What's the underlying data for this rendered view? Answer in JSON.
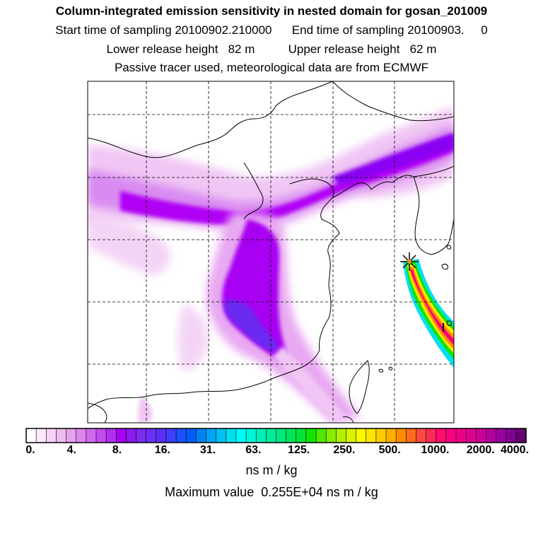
{
  "titles": {
    "main": "Column-integrated emission sensitivity in nested domain for gosan_201009",
    "sampling": "Start time of sampling 20100902.210000      End time of sampling 20100903.     0",
    "release": "Lower release height   82 m          Upper release height   62 m",
    "tracer": "Passive tracer used, meteorological data are from ECMWF"
  },
  "colorbar": {
    "tick_labels": [
      "0.",
      "4.",
      "8.",
      "16.",
      "31.",
      "63.",
      "125.",
      "250.",
      "500.",
      "1000.",
      "2000.",
      "4000."
    ],
    "colors": [
      "#ffffff",
      "#fbe8fb",
      "#f6d2f6",
      "#efbcf2",
      "#e6a2ef",
      "#dc86ee",
      "#d06aee",
      "#c24cee",
      "#b52df0",
      "#a800f2",
      "#8c1af0",
      "#7a2cf0",
      "#6a30f6",
      "#5a30f8",
      "#3c40fa",
      "#1c50fc",
      "#005ef8",
      "#0084f4",
      "#00a4f4",
      "#00c2f4",
      "#00e0f0",
      "#00fcf8",
      "#00f6da",
      "#00f0b8",
      "#00ec9c",
      "#00e880",
      "#00e45c",
      "#00e43c",
      "#14e400",
      "#4ee800",
      "#86ec00",
      "#b4f000",
      "#daf400",
      "#fafa00",
      "#ffe600",
      "#ffcc00",
      "#ffb000",
      "#ff8c00",
      "#ff6c1c",
      "#ff4a40",
      "#ff2a56",
      "#ff0c6e",
      "#f8007e",
      "#ec0088",
      "#dc0090",
      "#cc0098",
      "#b4009e",
      "#9a00a0",
      "#800090",
      "#640070"
    ],
    "units": "ns m / kg"
  },
  "max_value_text": "Maximum value  0.255E+04 ns m / kg",
  "map": {
    "receptor": "gosan",
    "grid": "dashed",
    "colors": {
      "purple_main": "#b000f4",
      "purple_dark": "#8a00f2",
      "blue": "#6a2cf0",
      "magenta": "#e070ee"
    }
  }
}
